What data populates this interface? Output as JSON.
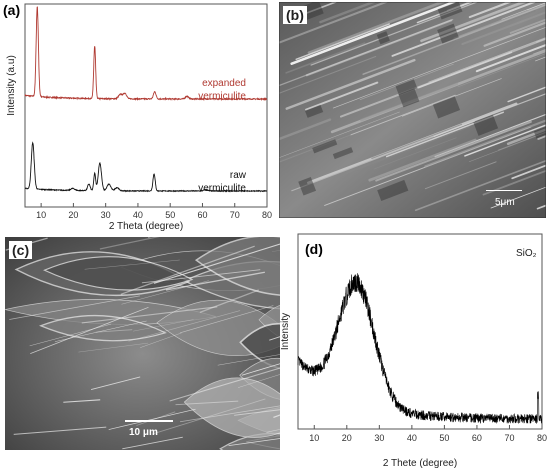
{
  "panels": {
    "a": {
      "label": "(a)"
    },
    "b": {
      "label": "(b)",
      "scale_bar": "5μm"
    },
    "c": {
      "label": "(c)",
      "scale_bar": "10 μm"
    },
    "d": {
      "label": "(d)"
    }
  },
  "colors": {
    "expanded": "#b03a32",
    "raw": "#111111",
    "sio2": "#000000",
    "axis": "#555555"
  },
  "chart_data": [
    {
      "panel": "a",
      "type": "line",
      "xlabel": "2 Theta (degree)",
      "ylabel": "Intensity (a.u)",
      "xlim": [
        5,
        80
      ],
      "x_ticks": [
        10,
        20,
        30,
        40,
        50,
        60,
        70,
        80
      ],
      "y_ticks_shown": false,
      "series": [
        {
          "name": "expanded vermiculite",
          "label_lines": [
            "expanded",
            "vermiculite"
          ],
          "offset": 1.0,
          "peaks": [
            {
              "x": 8.8,
              "height": 1.0,
              "width": 0.35
            },
            {
              "x": 26.6,
              "height": 0.58,
              "width": 0.3
            },
            {
              "x": 34.6,
              "height": 0.05,
              "width": 0.6
            },
            {
              "x": 36.0,
              "height": 0.06,
              "width": 0.5
            },
            {
              "x": 45.2,
              "height": 0.08,
              "width": 0.4
            },
            {
              "x": 55.2,
              "height": 0.03,
              "width": 0.5
            }
          ]
        },
        {
          "name": "raw vermiculite",
          "label_lines": [
            "raw",
            "vermiculite"
          ],
          "offset": 0.0,
          "peaks": [
            {
              "x": 7.4,
              "height": 0.7,
              "width": 0.45
            },
            {
              "x": 19.8,
              "height": 0.03,
              "width": 0.6
            },
            {
              "x": 24.8,
              "height": 0.1,
              "width": 0.4
            },
            {
              "x": 26.6,
              "height": 0.26,
              "width": 0.3
            },
            {
              "x": 28.2,
              "height": 0.42,
              "width": 0.5
            },
            {
              "x": 31.0,
              "height": 0.1,
              "width": 0.6
            },
            {
              "x": 33.5,
              "height": 0.05,
              "width": 0.6
            },
            {
              "x": 45.0,
              "height": 0.26,
              "width": 0.35
            },
            {
              "x": 61.0,
              "height": 0.02,
              "width": 0.6
            }
          ]
        }
      ]
    },
    {
      "panel": "d",
      "type": "line",
      "legend": "SiO₂",
      "xlabel": "2 Thete (degree)",
      "ylabel": "Intensity",
      "xlim": [
        5,
        80
      ],
      "x_ticks": [
        10,
        20,
        30,
        40,
        50,
        60,
        70,
        80
      ],
      "y_ticks_shown": false,
      "profile": {
        "low_angle_value": 0.35,
        "hump_center": 23,
        "hump_height": 0.62,
        "hump_width": 5.5,
        "baseline_end": 0.05,
        "noise": 0.05,
        "spike": {
          "x": 78.8,
          "height": 0.12
        }
      }
    }
  ]
}
